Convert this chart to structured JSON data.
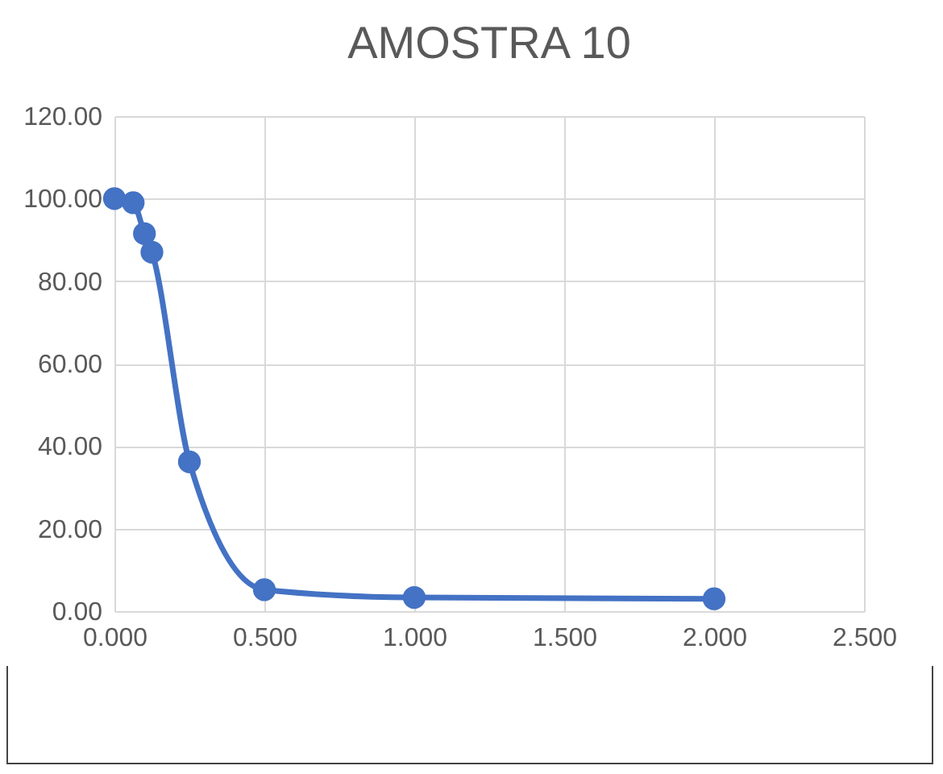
{
  "chart_data": {
    "type": "line",
    "title": "AMOSTRA 10",
    "series": [
      {
        "color": "#4472c4",
        "x": [
          0,
          0.0625,
          0.1,
          0.125,
          0.25,
          0.5,
          1.0,
          2.0
        ],
        "values": [
          100,
          99,
          91.5,
          87,
          36.2,
          5.2,
          3.3,
          3.0
        ]
      }
    ],
    "xlim": [
      0,
      2.5
    ],
    "xticks": [
      {
        "value": 0,
        "label": "0.000"
      },
      {
        "value": 0.5,
        "label": "0.500"
      },
      {
        "value": 1,
        "label": "1.000"
      },
      {
        "value": 1.5,
        "label": "1.500"
      },
      {
        "value": 2,
        "label": "2.000"
      },
      {
        "value": 2.5,
        "label": "2.500"
      }
    ],
    "ylim": [
      0,
      120
    ],
    "yticks": [
      {
        "value": 0,
        "label": "0.00"
      },
      {
        "value": 20,
        "label": "20.00"
      },
      {
        "value": 40,
        "label": "40.00"
      },
      {
        "value": 60,
        "label": "60.00"
      },
      {
        "value": 80,
        "label": "80.00"
      },
      {
        "value": 100,
        "label": "100.00"
      },
      {
        "value": 120,
        "label": "120.00"
      }
    ],
    "grid": true,
    "marker": "circle",
    "line_style": "solid"
  }
}
